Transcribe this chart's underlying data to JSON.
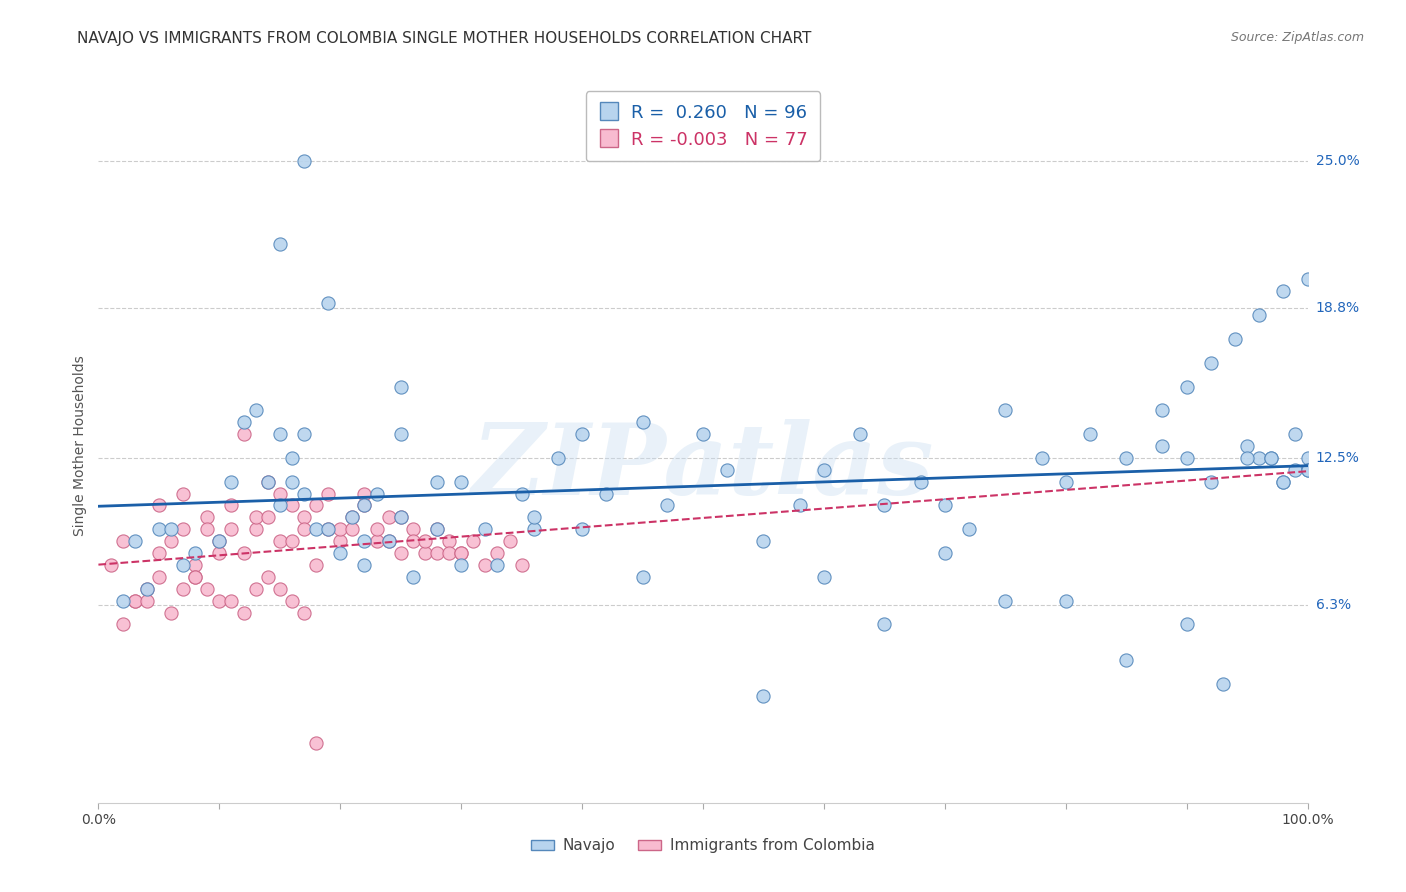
{
  "title": "NAVAJO VS IMMIGRANTS FROM COLOMBIA SINGLE MOTHER HOUSEHOLDS CORRELATION CHART",
  "source": "Source: ZipAtlas.com",
  "ylabel": "Single Mother Households",
  "xlim": [
    0,
    100
  ],
  "ylim": [
    -2,
    28
  ],
  "ytick_positions": [
    6.3,
    12.5,
    18.8,
    25.0
  ],
  "ytick_labels": [
    "6.3%",
    "12.5%",
    "18.8%",
    "25.0%"
  ],
  "navajo_color": "#b8d4ee",
  "navajo_edge_color": "#5588bb",
  "colombia_color": "#f8bbd0",
  "colombia_edge_color": "#cc6688",
  "navajo_R": 0.26,
  "navajo_N": 96,
  "colombia_R": -0.003,
  "colombia_N": 77,
  "legend_label_navajo": "Navajo",
  "legend_label_colombia": "Immigrants from Colombia",
  "watermark": "ZIPatlas",
  "background_color": "#ffffff",
  "grid_color": "#cccccc",
  "navajo_line_color": "#1a5fa8",
  "colombia_line_color": "#cc3366",
  "title_fontsize": 11,
  "axis_label_fontsize": 10,
  "tick_fontsize": 10,
  "navajo_x": [
    5,
    10,
    12,
    14,
    15,
    16,
    17,
    18,
    19,
    20,
    21,
    22,
    23,
    24,
    25,
    26,
    28,
    30,
    32,
    35,
    36,
    38,
    40,
    42,
    45,
    47,
    50,
    52,
    55,
    58,
    60,
    63,
    65,
    68,
    70,
    72,
    75,
    78,
    80,
    82,
    85,
    88,
    90,
    92,
    95,
    96,
    97,
    98,
    99,
    100,
    2,
    3,
    4,
    6,
    7,
    8,
    11,
    13,
    15,
    17,
    19,
    22,
    25,
    15,
    16,
    17,
    22,
    25,
    28,
    30,
    33,
    36,
    40,
    45,
    55,
    60,
    65,
    70,
    75,
    80,
    85,
    90,
    93,
    95,
    97,
    98,
    99,
    100,
    100,
    100,
    98,
    96,
    94,
    92,
    90,
    88
  ],
  "navajo_y": [
    9.5,
    9.0,
    14.0,
    11.5,
    13.5,
    12.5,
    11.0,
    9.5,
    9.5,
    8.5,
    10.0,
    10.5,
    11.0,
    9.0,
    15.5,
    7.5,
    11.5,
    8.0,
    9.5,
    11.0,
    9.5,
    12.5,
    13.5,
    11.0,
    14.0,
    10.5,
    13.5,
    12.0,
    9.0,
    10.5,
    12.0,
    13.5,
    10.5,
    11.5,
    10.5,
    9.5,
    14.5,
    12.5,
    11.5,
    13.5,
    12.5,
    13.0,
    12.5,
    11.5,
    13.0,
    12.5,
    12.5,
    11.5,
    12.0,
    12.5,
    6.5,
    9.0,
    7.0,
    9.5,
    8.0,
    8.5,
    11.5,
    14.5,
    21.5,
    25.0,
    19.0,
    9.0,
    13.5,
    10.5,
    11.5,
    13.5,
    8.0,
    10.0,
    9.5,
    11.5,
    8.0,
    10.0,
    9.5,
    7.5,
    2.5,
    7.5,
    5.5,
    8.5,
    6.5,
    6.5,
    4.0,
    5.5,
    3.0,
    12.5,
    12.5,
    11.5,
    13.5,
    12.0,
    12.0,
    20.0,
    19.5,
    18.5,
    17.5,
    16.5,
    15.5,
    14.5
  ],
  "colombia_x": [
    1,
    2,
    3,
    4,
    5,
    5,
    6,
    7,
    7,
    8,
    8,
    9,
    9,
    10,
    10,
    11,
    11,
    12,
    12,
    13,
    13,
    14,
    14,
    15,
    15,
    16,
    16,
    17,
    17,
    18,
    18,
    19,
    19,
    20,
    20,
    21,
    21,
    22,
    22,
    23,
    23,
    24,
    24,
    25,
    25,
    26,
    26,
    27,
    27,
    28,
    28,
    29,
    29,
    30,
    30,
    31,
    32,
    33,
    34,
    35,
    2,
    3,
    4,
    5,
    6,
    7,
    8,
    9,
    10,
    11,
    12,
    13,
    14,
    15,
    16,
    17,
    18
  ],
  "colombia_y": [
    8.0,
    9.0,
    6.5,
    7.0,
    8.5,
    10.5,
    9.0,
    11.0,
    9.5,
    8.0,
    7.5,
    10.0,
    9.5,
    8.5,
    9.0,
    10.5,
    9.5,
    13.5,
    8.5,
    9.5,
    10.0,
    11.5,
    10.0,
    9.0,
    11.0,
    10.5,
    9.0,
    10.0,
    9.5,
    8.0,
    10.5,
    9.5,
    11.0,
    9.0,
    9.5,
    10.0,
    9.5,
    11.0,
    10.5,
    9.0,
    9.5,
    10.0,
    9.0,
    8.5,
    10.0,
    9.5,
    9.0,
    8.5,
    9.0,
    9.5,
    8.5,
    9.0,
    8.5,
    8.5,
    8.5,
    9.0,
    8.0,
    8.5,
    9.0,
    8.0,
    5.5,
    6.5,
    6.5,
    7.5,
    6.0,
    7.0,
    7.5,
    7.0,
    6.5,
    6.5,
    6.0,
    7.0,
    7.5,
    7.0,
    6.5,
    6.0,
    0.5
  ]
}
